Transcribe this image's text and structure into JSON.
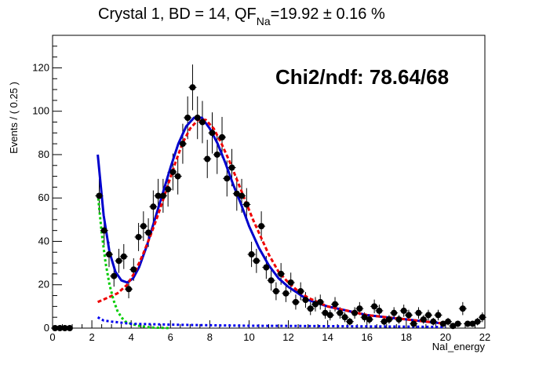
{
  "title": {
    "prefix": "Crystal 1, BD = 14, QF",
    "subscript": "Na",
    "suffix": "=19.92 ± 0.16 %"
  },
  "stat_box": "Chi2/ndf: 78.64/68",
  "chart_data": {
    "type": "scatter",
    "xlabel": "NaI_energy",
    "ylabel": "Events / ( 0.25 )",
    "xlim": [
      0,
      22
    ],
    "ylim": [
      0,
      135
    ],
    "x_ticks": [
      0,
      2,
      4,
      6,
      8,
      10,
      12,
      14,
      16,
      18,
      20,
      22
    ],
    "y_ticks": [
      0,
      20,
      40,
      60,
      80,
      100,
      120
    ],
    "grid": false,
    "data_points": {
      "x": [
        0.125,
        0.375,
        0.625,
        0.875,
        2.375,
        2.625,
        2.875,
        3.125,
        3.375,
        3.625,
        3.875,
        4.125,
        4.375,
        4.625,
        4.875,
        5.125,
        5.375,
        5.625,
        5.875,
        6.125,
        6.375,
        6.625,
        6.875,
        7.125,
        7.375,
        7.625,
        7.875,
        8.125,
        8.375,
        8.625,
        8.875,
        9.125,
        9.375,
        9.625,
        9.875,
        10.125,
        10.375,
        10.625,
        10.875,
        11.125,
        11.375,
        11.625,
        11.875,
        12.125,
        12.375,
        12.625,
        12.875,
        13.125,
        13.375,
        13.625,
        13.875,
        14.125,
        14.375,
        14.625,
        14.875,
        15.125,
        15.375,
        15.625,
        15.875,
        16.125,
        16.375,
        16.625,
        16.875,
        17.125,
        17.375,
        17.625,
        17.875,
        18.125,
        18.375,
        18.625,
        18.875,
        19.125,
        19.375,
        19.625,
        19.875,
        20.125,
        20.375,
        20.625,
        20.875,
        21.125,
        21.375,
        21.625,
        21.875
      ],
      "y": [
        0,
        0,
        0,
        0,
        61,
        45,
        34,
        24,
        31,
        33,
        18,
        27,
        42,
        47,
        44,
        56,
        61,
        61,
        64,
        72,
        70,
        85,
        97,
        111,
        97,
        95,
        78,
        90,
        80,
        88,
        69,
        74,
        62,
        61,
        57,
        34,
        31,
        47,
        28,
        22,
        17,
        25,
        16,
        21,
        12,
        17,
        13,
        9,
        11,
        12,
        7,
        6,
        11,
        7,
        5,
        3,
        7,
        9,
        5,
        4,
        10,
        8,
        3,
        4,
        7,
        4,
        8,
        6,
        2,
        7,
        4,
        6,
        3,
        6,
        2,
        3,
        1,
        2,
        9,
        2,
        2,
        3,
        5
      ]
    },
    "series": [
      {
        "name": "",
        "color": "#0000cc",
        "style": "solid",
        "x": [
          2.3,
          2.6,
          2.9,
          3.2,
          3.5,
          3.8,
          4.1,
          4.4,
          4.8,
          5.2,
          5.6,
          6.0,
          6.4,
          6.8,
          7.2,
          7.6,
          8.0,
          8.4,
          8.8,
          9.2,
          9.6,
          10.0,
          10.5,
          11.0,
          11.5,
          12.0,
          12.5,
          13.0,
          14.0,
          15.0,
          16.0,
          17.0,
          18.0,
          19.0,
          20.0
        ],
        "y": [
          80,
          52,
          35,
          26,
          22,
          21,
          23,
          28,
          38,
          50,
          62,
          74,
          85,
          93,
          97,
          97,
          92,
          85,
          76,
          66,
          57,
          47,
          37,
          29,
          23,
          19,
          16,
          13,
          10,
          8,
          6,
          5,
          4,
          3,
          2
        ]
      },
      {
        "name": "",
        "color": "#ee0000",
        "style": "dashed",
        "x": [
          2.3,
          2.8,
          3.3,
          3.8,
          4.2,
          4.6,
          5.0,
          5.4,
          5.8,
          6.2,
          6.6,
          7.0,
          7.4,
          7.8,
          8.2,
          8.6,
          9.0,
          9.4,
          9.8,
          10.2,
          10.6,
          11.0,
          11.5,
          12.0,
          12.5,
          13.0,
          14.0,
          15.0,
          16.0,
          17.0,
          18.0,
          19.0,
          20.0
        ],
        "y": [
          12,
          14,
          16,
          20,
          26,
          34,
          43,
          53,
          64,
          75,
          85,
          92,
          96,
          96,
          92,
          85,
          77,
          68,
          59,
          50,
          42,
          34,
          26,
          21,
          17,
          14,
          10,
          8,
          6,
          5,
          4,
          3,
          2
        ]
      },
      {
        "name": "",
        "color": "#00cc00",
        "style": "dotted",
        "x": [
          2.3,
          2.5,
          2.7,
          2.9,
          3.1,
          3.3,
          3.5,
          3.7,
          4.0,
          4.4,
          5.0,
          6.0
        ],
        "y": [
          62,
          44,
          30,
          20,
          13,
          8,
          5,
          3,
          2,
          1,
          0.3,
          0
        ]
      },
      {
        "name": "",
        "color": "#0000ee",
        "style": "dotted",
        "x": [
          2.3,
          2.6,
          3.0,
          3.5,
          4.0,
          5.0,
          6.0,
          8.0,
          10.0,
          12.0,
          14.0,
          16.0,
          18.0,
          20.0
        ],
        "y": [
          5,
          3.5,
          3,
          2.5,
          2,
          1.8,
          1.6,
          1.3,
          1.1,
          1.0,
          0.9,
          0.8,
          0.7,
          0.5
        ]
      }
    ]
  }
}
